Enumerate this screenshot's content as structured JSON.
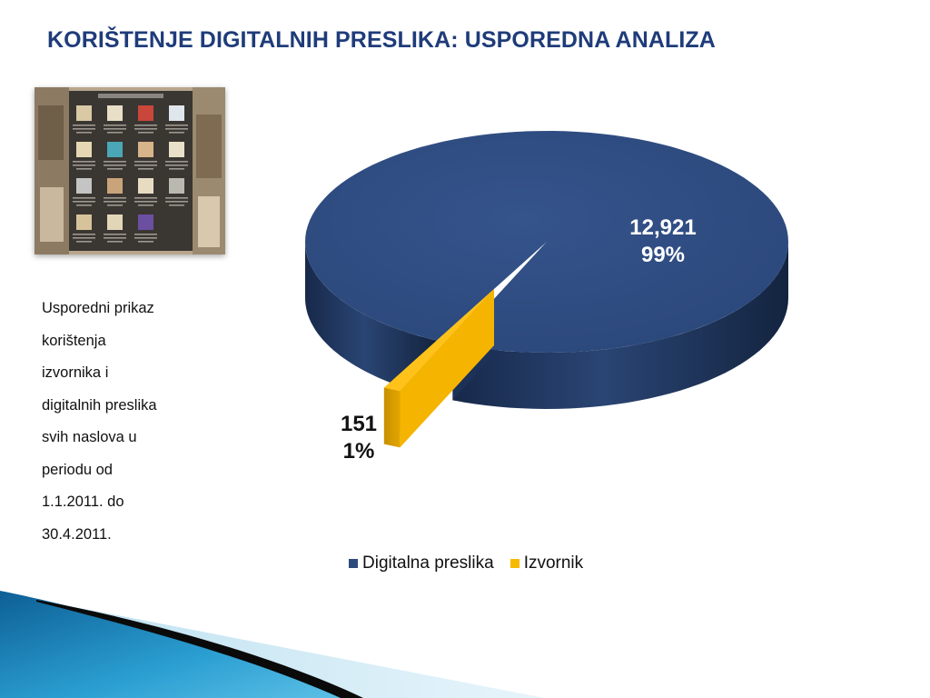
{
  "slide": {
    "title": "KORIŠTENJE DIGITALNIH PRESLIKA: USPOREDNA ANALIZA",
    "description_lines": [
      "Usporedni prikaz",
      "korištenja",
      "izvornika i",
      "digitalnih preslika",
      "svih naslova u",
      "periodu od",
      "1.1.2011. do",
      "30.4.2011."
    ]
  },
  "chart_data": {
    "type": "pie",
    "style": "3d-exploded",
    "categories": [
      "Digitalna preslika",
      "Izvornik"
    ],
    "values": [
      12921,
      151
    ],
    "percent_labels": [
      "99%",
      "1%"
    ],
    "value_labels": [
      "12,921",
      "151"
    ],
    "legend": {
      "placement": "bottom"
    }
  },
  "colors": {
    "title": "#1f3c7a",
    "digitalna": "#2e4a7c",
    "izvornik": "#f7b800",
    "decor_blue": "#1d8fc1"
  },
  "icons": {
    "thumbnail": "digital-collection-screenshot-image"
  }
}
